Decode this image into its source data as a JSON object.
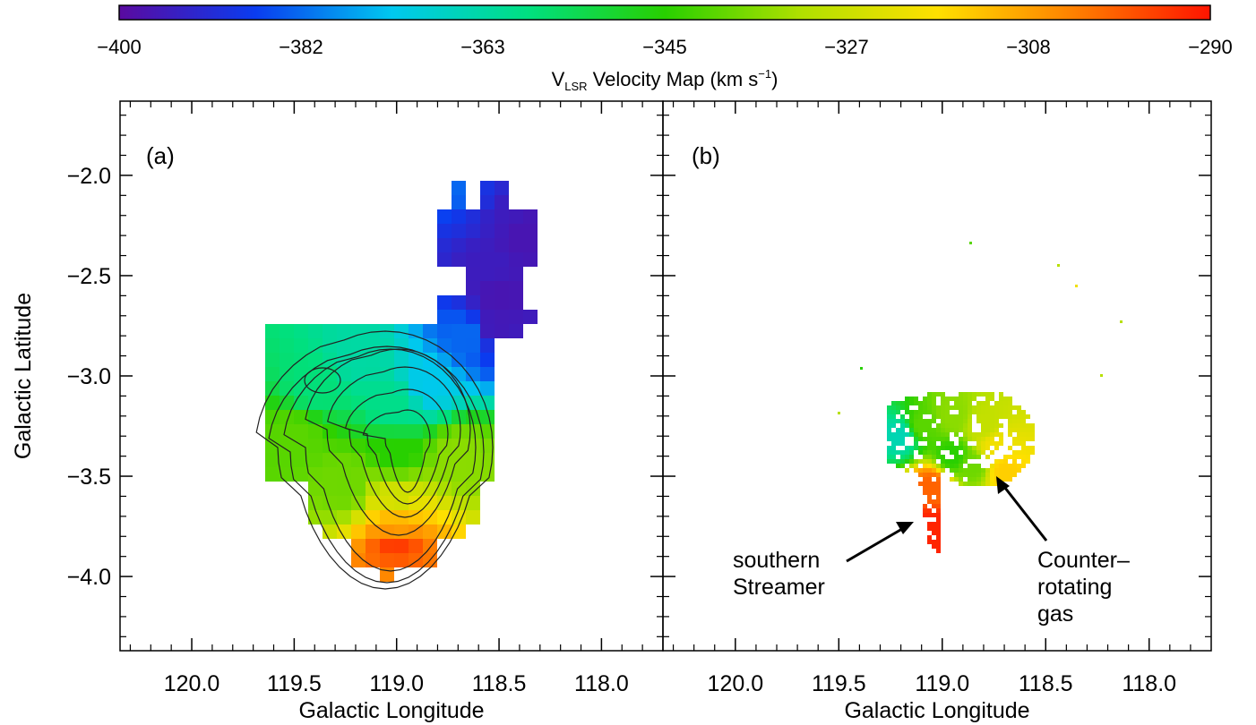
{
  "colorbar": {
    "ticks": [
      "−400",
      "−382",
      "−363",
      "−345",
      "−327",
      "−308",
      "−290"
    ],
    "range": [
      -400,
      -290
    ],
    "label_main": "V",
    "label_sub": "LSR",
    "label_rest": " Velocity Map (km s",
    "label_sup": "−1",
    "label_close": ")",
    "colormap": [
      "#5a0aa0",
      "#0a3cf0",
      "#00c8f0",
      "#00e080",
      "#28d000",
      "#b0e000",
      "#ffe000",
      "#ff8000",
      "#ff1400"
    ]
  },
  "chart_data": [
    {
      "type": "heatmap",
      "panel_label": "(a)",
      "xlabel": "Galactic Longitude",
      "ylabel": "Galactic Latitude",
      "xlim": [
        120.35,
        117.7
      ],
      "ylim": [
        -4.37,
        -1.63
      ],
      "xticks": [
        "120.0",
        "119.5",
        "119.0",
        "118.5",
        "118.0"
      ],
      "xtick_values": [
        120.0,
        119.5,
        119.0,
        118.5,
        118.0
      ],
      "yticks": [
        "−2.0",
        "−2.5",
        "−3.0",
        "−3.5",
        "−4.0"
      ],
      "ytick_values": [
        -2.0,
        -2.5,
        -3.0,
        -3.5,
        -4.0
      ],
      "grid": false,
      "contours": "black iso-intensity contours centred near l=119.0, b=-3.35 and l=119.35, b=-3.05",
      "cells": [
        {
          "l": 118.68,
          "b": -2.08,
          "v": -382
        },
        {
          "l": 118.6,
          "b": -2.15,
          "v": -390
        },
        {
          "l": 118.5,
          "b": -2.2,
          "v": -395
        },
        {
          "l": 118.4,
          "b": -2.3,
          "v": -397
        },
        {
          "l": 118.55,
          "b": -2.45,
          "v": -395
        },
        {
          "l": 118.5,
          "b": -2.6,
          "v": -397
        },
        {
          "l": 118.65,
          "b": -2.8,
          "v": -382
        },
        {
          "l": 118.52,
          "b": -2.75,
          "v": -396
        },
        {
          "l": 119.2,
          "b": -2.9,
          "v": -363
        },
        {
          "l": 119.4,
          "b": -3.05,
          "v": -358
        },
        {
          "l": 119.0,
          "b": -3.15,
          "v": -360
        },
        {
          "l": 118.85,
          "b": -3.05,
          "v": -372
        },
        {
          "l": 119.5,
          "b": -3.3,
          "v": -340
        },
        {
          "l": 119.0,
          "b": -3.4,
          "v": -345
        },
        {
          "l": 118.7,
          "b": -3.4,
          "v": -335
        },
        {
          "l": 119.25,
          "b": -3.55,
          "v": -338
        },
        {
          "l": 119.0,
          "b": -3.6,
          "v": -326
        },
        {
          "l": 119.0,
          "b": -3.72,
          "v": -312
        },
        {
          "l": 119.0,
          "b": -3.85,
          "v": -295
        },
        {
          "l": 119.0,
          "b": -4.0,
          "v": -305
        }
      ]
    },
    {
      "type": "heatmap",
      "panel_label": "(b)",
      "xlabel": "Galactic Longitude",
      "ylabel": "",
      "xlim": [
        120.35,
        117.7
      ],
      "ylim": [
        -4.37,
        -1.63
      ],
      "xticks": [
        "120.0",
        "119.5",
        "119.0",
        "118.5",
        "118.0"
      ],
      "xtick_values": [
        120.0,
        119.5,
        119.0,
        118.5,
        118.0
      ],
      "grid": false,
      "cells": [
        {
          "l": 119.2,
          "b": -3.3,
          "v": -365
        },
        {
          "l": 119.1,
          "b": -3.25,
          "v": -340
        },
        {
          "l": 118.95,
          "b": -3.2,
          "v": -335
        },
        {
          "l": 118.8,
          "b": -3.25,
          "v": -328
        },
        {
          "l": 118.75,
          "b": -3.35,
          "v": -320
        },
        {
          "l": 118.95,
          "b": -3.4,
          "v": -345
        },
        {
          "l": 119.05,
          "b": -3.55,
          "v": -300
        },
        {
          "l": 119.05,
          "b": -3.75,
          "v": -292
        },
        {
          "l": 119.02,
          "b": -3.9,
          "v": -292
        },
        {
          "l": 118.85,
          "b": -3.45,
          "v": -338
        },
        {
          "l": 118.7,
          "b": -3.48,
          "v": -315
        }
      ],
      "annotations": [
        {
          "lines": [
            "southern",
            "Streamer"
          ]
        },
        {
          "lines": [
            "Counter–",
            "rotating",
            "gas"
          ]
        }
      ]
    }
  ]
}
